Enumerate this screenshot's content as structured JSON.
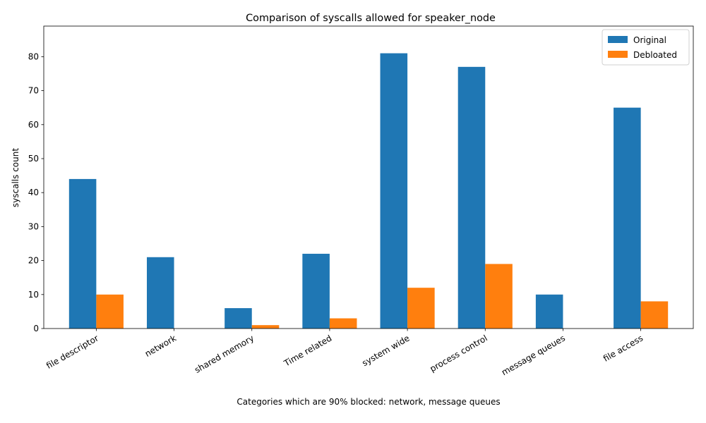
{
  "chart_data": {
    "type": "bar",
    "title": "Comparison of syscalls allowed for speaker_node",
    "xlabel": "Categories which are 90% blocked: network, message queues",
    "ylabel": "syscalls count",
    "categories": [
      "file descriptor",
      "network",
      "shared memory",
      "Time related",
      "system wide",
      "process control",
      "message queues",
      "file access"
    ],
    "series": [
      {
        "name": "Original",
        "color": "#1f77b4",
        "values": [
          44,
          21,
          6,
          22,
          81,
          77,
          10,
          65
        ]
      },
      {
        "name": "Debloated",
        "color": "#ff7f0e",
        "values": [
          10,
          0,
          1,
          3,
          12,
          19,
          0,
          8
        ]
      }
    ],
    "ylim": [
      0,
      89
    ],
    "yticks": [
      0,
      10,
      20,
      30,
      40,
      50,
      60,
      70,
      80
    ],
    "grid": false,
    "legend_position": "top-right"
  }
}
